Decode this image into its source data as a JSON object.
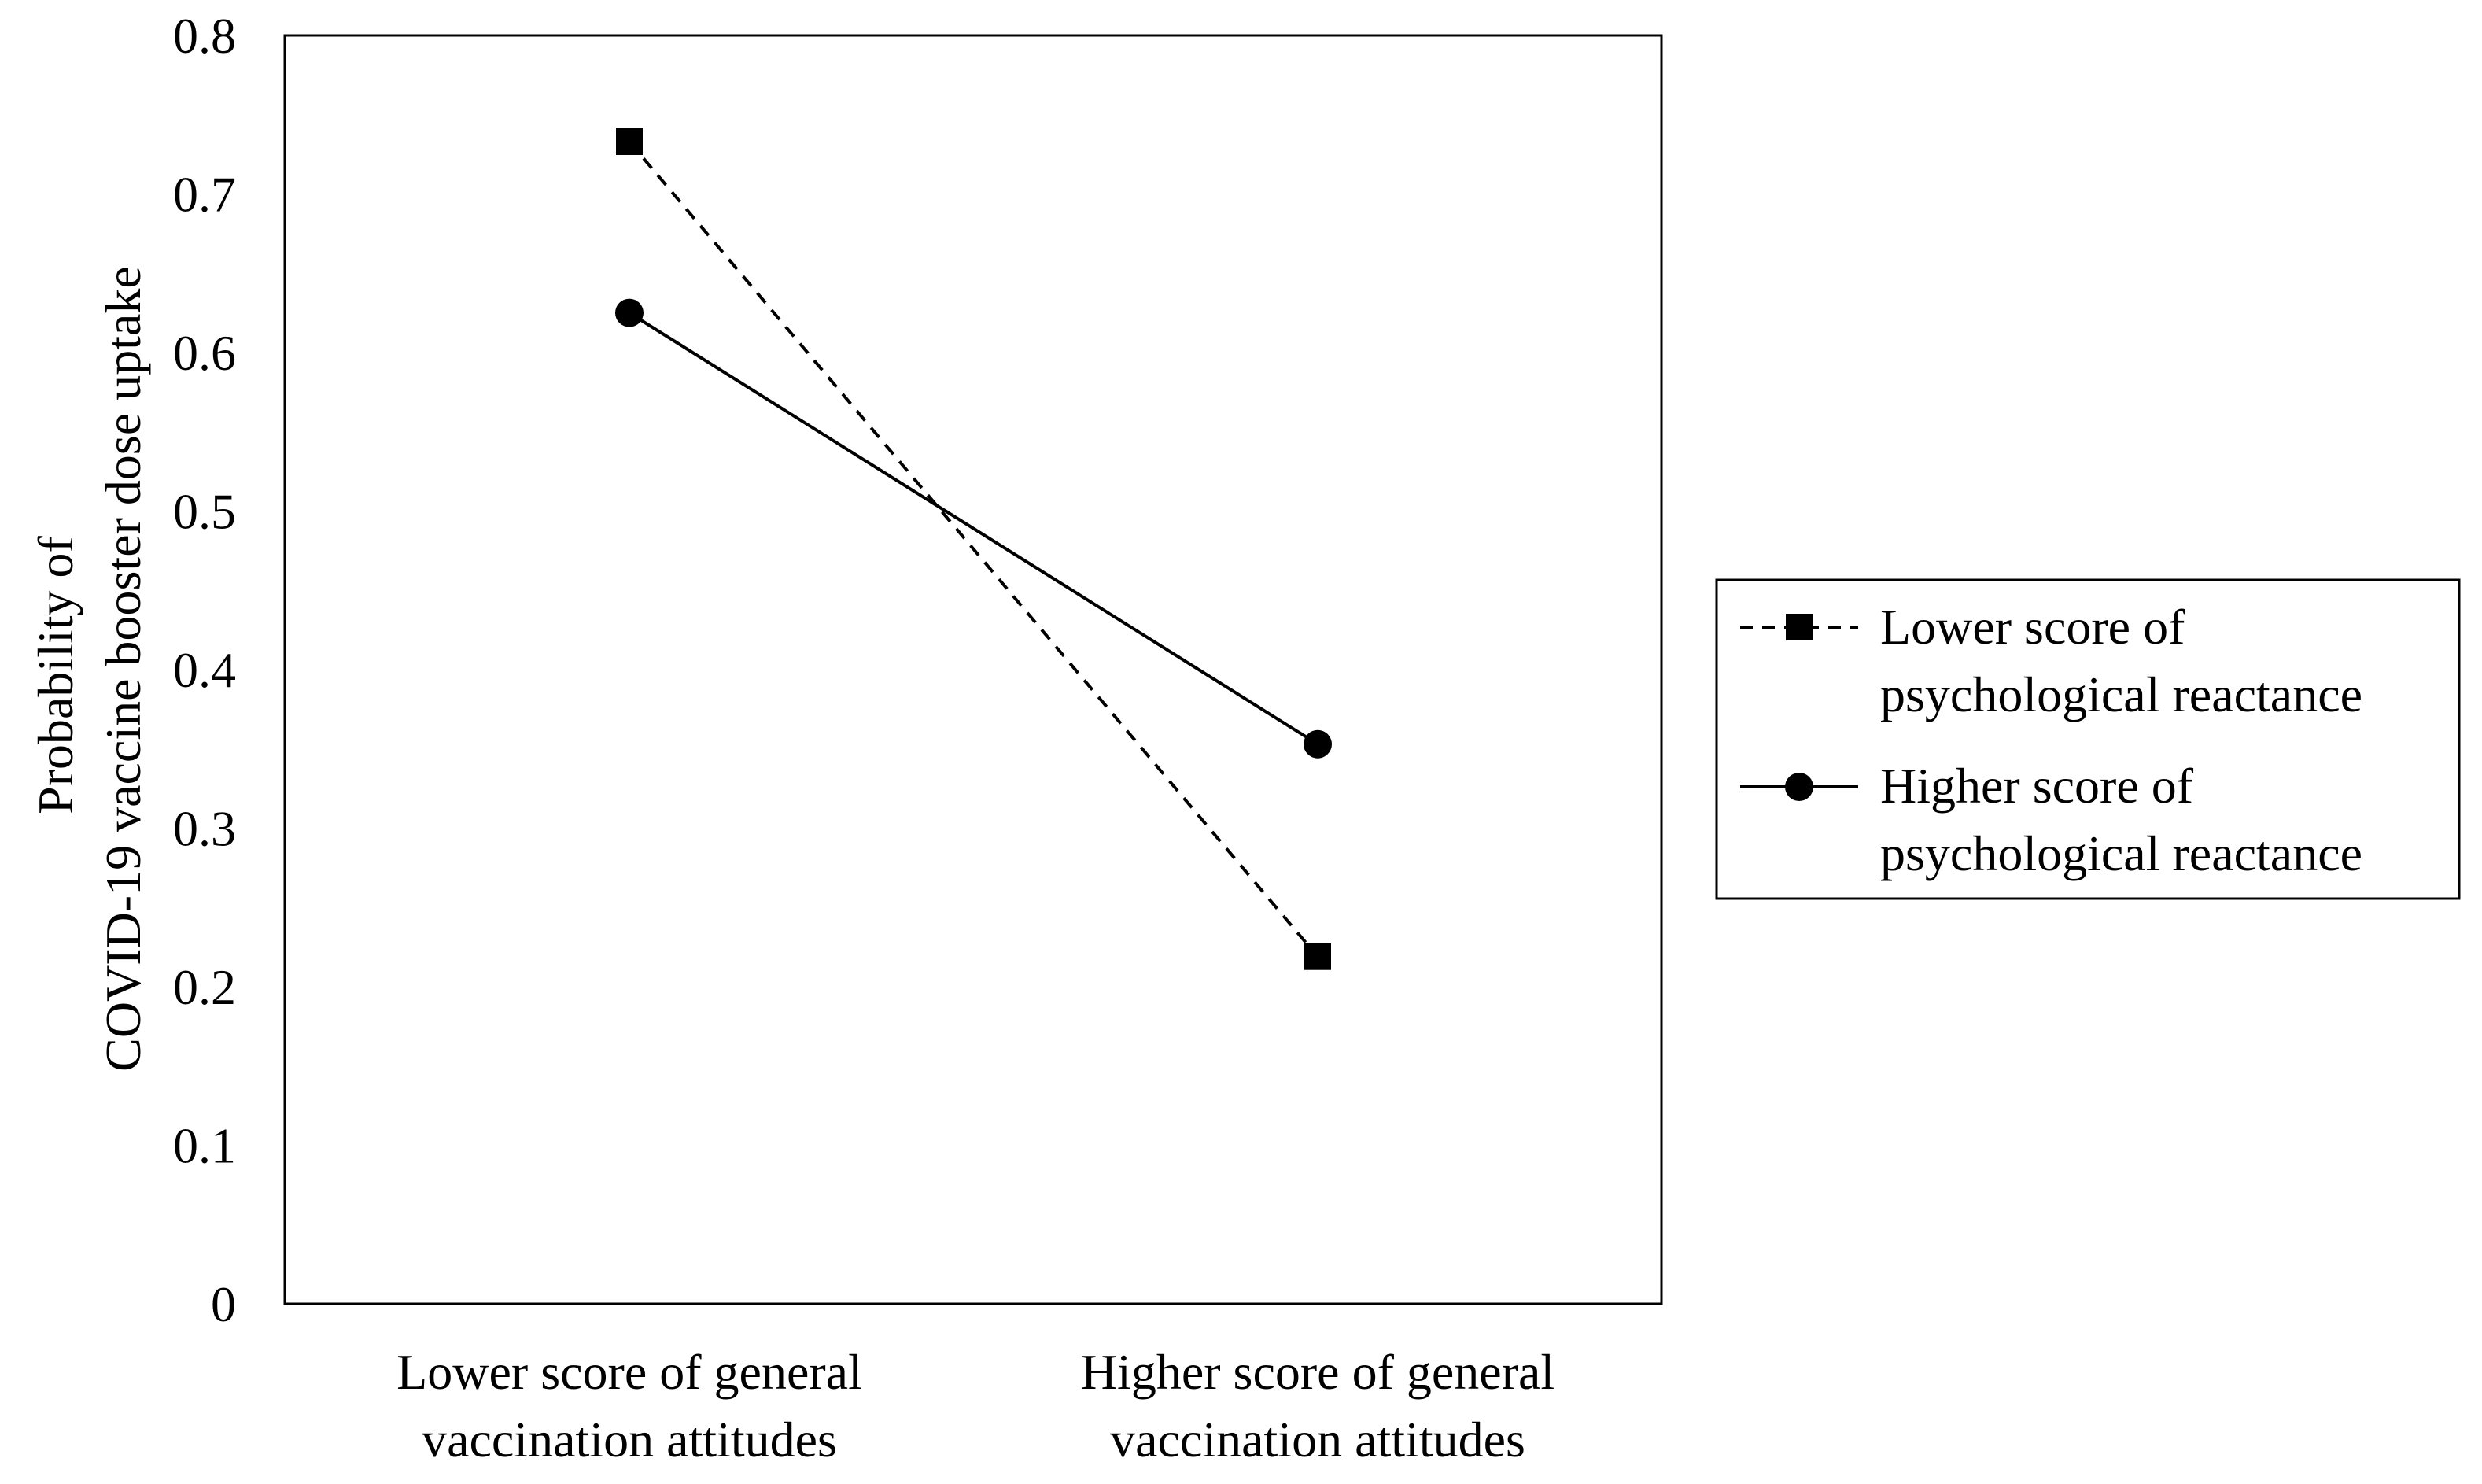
{
  "chart_data": {
    "type": "line",
    "categories": [
      [
        "Lower score of general",
        "vaccination attitudes"
      ],
      [
        "Higher score of general",
        "vaccination attitudes"
      ]
    ],
    "ylabel": [
      "Probability of",
      "COVID-19 vaccine booster dose uptake"
    ],
    "ylim": [
      0,
      0.8
    ],
    "yticks": [
      "0",
      "0.1",
      "0.2",
      "0.3",
      "0.4",
      "0.5",
      "0.6",
      "0.7",
      "0.8"
    ],
    "grid": false,
    "legend_position": "right",
    "series": [
      {
        "name": [
          "Lower score of",
          "psychological reactance"
        ],
        "values": [
          0.733,
          0.219
        ],
        "line_style": "dashed",
        "marker": "square",
        "color": "#000000"
      },
      {
        "name": [
          "Higher score of",
          "psychological reactance"
        ],
        "values": [
          0.625,
          0.353
        ],
        "line_style": "solid",
        "marker": "circle",
        "color": "#000000"
      }
    ]
  }
}
